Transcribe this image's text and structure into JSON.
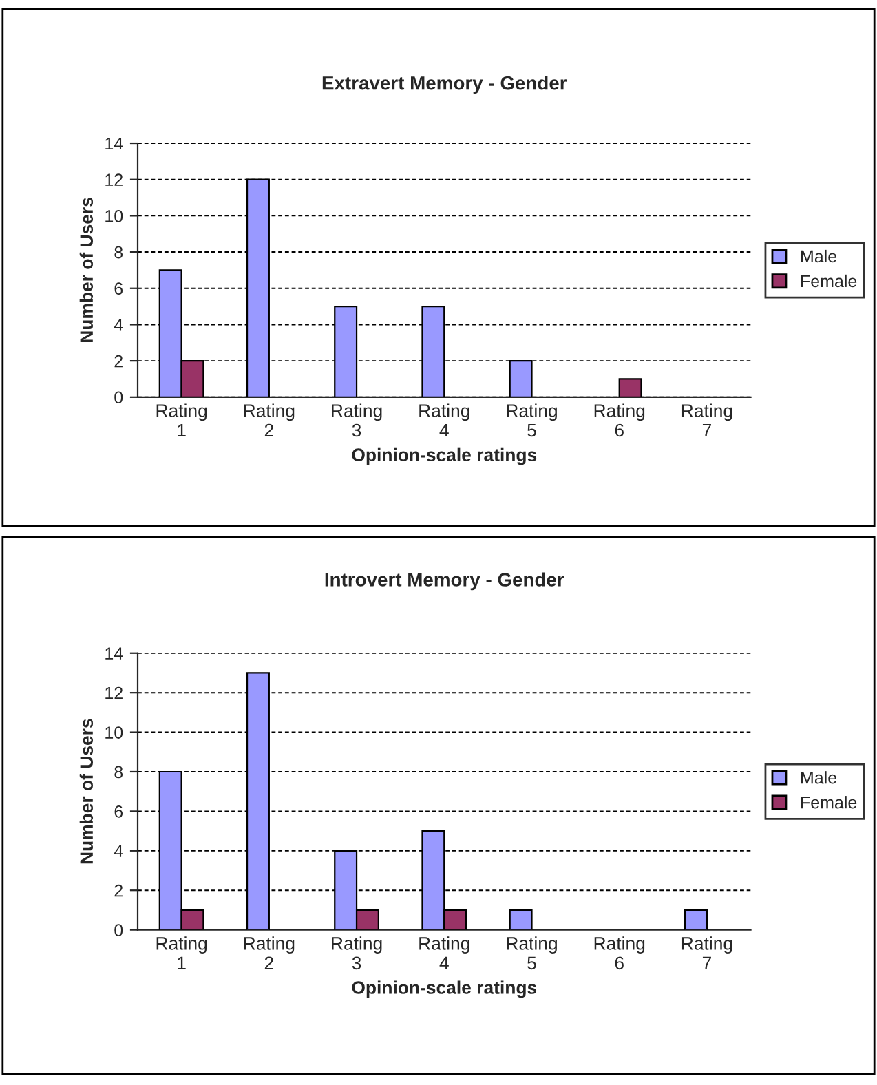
{
  "chart_data": [
    {
      "type": "bar",
      "title": "Extravert Memory - Gender",
      "xlabel": "Opinion-scale ratings",
      "ylabel": "Number of Users",
      "categories": [
        "Rating 1",
        "Rating 2",
        "Rating 3",
        "Rating 4",
        "Rating 5",
        "Rating 6",
        "Rating 7"
      ],
      "series": [
        {
          "name": "Male",
          "color": "#9999ff",
          "values": [
            7,
            12,
            5,
            5,
            2,
            0,
            0
          ]
        },
        {
          "name": "Female",
          "color": "#993366",
          "values": [
            2,
            0,
            0,
            0,
            0,
            1,
            0
          ]
        }
      ],
      "ylim": [
        0,
        14
      ],
      "yticks": [
        0,
        2,
        4,
        6,
        8,
        10,
        12,
        14
      ],
      "grid": "y",
      "legend": "right"
    },
    {
      "type": "bar",
      "title": "Introvert Memory - Gender",
      "xlabel": "Opinion-scale ratings",
      "ylabel": "Number of Users",
      "categories": [
        "Rating 1",
        "Rating 2",
        "Rating 3",
        "Rating 4",
        "Rating 5",
        "Rating 6",
        "Rating 7"
      ],
      "series": [
        {
          "name": "Male",
          "color": "#9999ff",
          "values": [
            8,
            13,
            4,
            5,
            1,
            0,
            1
          ]
        },
        {
          "name": "Female",
          "color": "#993366",
          "values": [
            1,
            0,
            1,
            1,
            0,
            0,
            0
          ]
        }
      ],
      "ylim": [
        0,
        14
      ],
      "yticks": [
        0,
        2,
        4,
        6,
        8,
        10,
        12,
        14
      ],
      "grid": "y",
      "legend": "right"
    }
  ]
}
